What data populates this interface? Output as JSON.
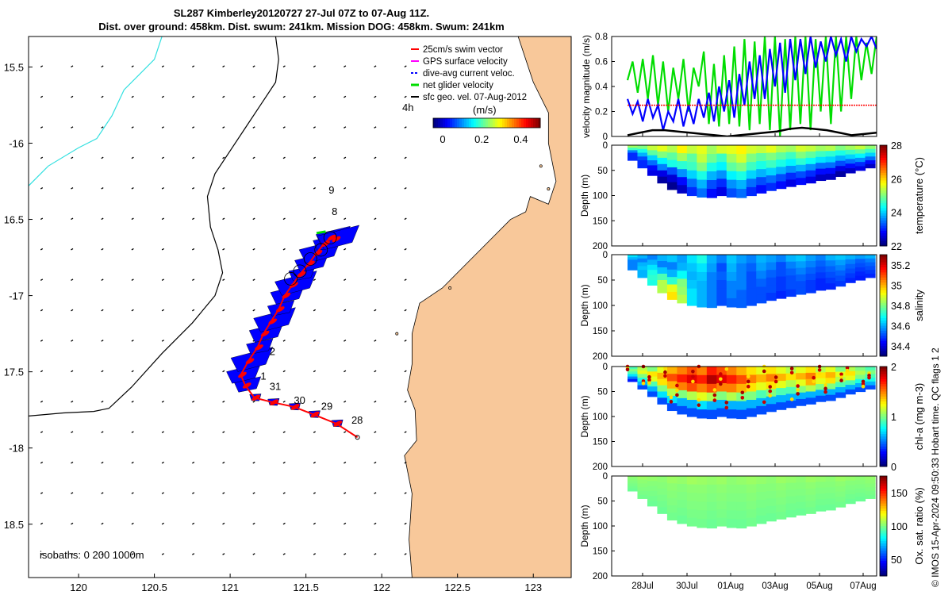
{
  "title_line1": "SL287 Kimberley20120727 27-Jul 07Z to 07-Aug 11Z.",
  "title_line2": "Dist. over ground: 458km. Dist. swum: 241km. Mission DOG: 458km. Swum: 241km",
  "credit": "© IMOS 15-Apr-2024 09:50:33 Hobart time. QC flags 1  2",
  "colors": {
    "land": "#f8c89a",
    "track": "#ff0000",
    "dive_vel": "#0000ff",
    "net_vel": "#00dd00",
    "isobath_200": "#000000",
    "isobath_1000": "#33e0e0"
  },
  "chart_data": [
    {
      "type": "map",
      "lon_ticks": [
        120,
        120.5,
        121,
        121.5,
        122,
        122.5,
        123
      ],
      "lon_tick_labels": [
        "120",
        "120.5",
        "121",
        "121.5",
        "122",
        "122.5",
        "123"
      ],
      "lat_ticks": [
        -15.5,
        -16,
        -16.5,
        -17,
        -17.5,
        -18,
        -18.5
      ],
      "lat_tick_labels": [
        "15.5",
        "-16",
        "16.5",
        "-17",
        "17.5",
        "-18",
        "18.5"
      ],
      "xlim": [
        119.67,
        123.25
      ],
      "ylim": [
        -18.85,
        -15.3
      ],
      "legend": [
        "25cm/s swim vector",
        "GPS surface velocity",
        "dive-avg current veloc.",
        "net glider velocity",
        "sfc geo. vel. 07-Aug-2012"
      ],
      "legend_location": "top-right",
      "colorbar_label": "(m/s)",
      "colorbar_ticks": [
        "0",
        "0.2",
        "0.4"
      ],
      "colorbar_range": [
        0,
        0.5
      ],
      "time_marker": "4h",
      "isobath_label": "isobaths: 0   200  1000m",
      "track_lon": [
        121.84,
        121.7,
        121.55,
        121.42,
        121.28,
        121.16,
        121.1,
        121.07,
        121.12,
        121.18,
        121.22,
        121.27,
        121.32,
        121.36,
        121.41,
        121.46,
        121.52,
        121.57,
        121.62,
        121.66,
        121.69
      ],
      "track_lat": [
        -17.93,
        -17.84,
        -17.78,
        -17.73,
        -17.7,
        -17.67,
        -17.59,
        -17.52,
        -17.43,
        -17.34,
        -17.25,
        -17.17,
        -17.09,
        -17.0,
        -16.93,
        -16.86,
        -16.79,
        -16.72,
        -16.66,
        -16.62,
        -16.63
      ],
      "day_labels": [
        {
          "text": "28",
          "lon": 121.8,
          "lat": -17.84
        },
        {
          "text": "29",
          "lon": 121.6,
          "lat": -17.75
        },
        {
          "text": "30",
          "lon": 121.42,
          "lat": -17.71
        },
        {
          "text": "31",
          "lon": 121.26,
          "lat": -17.62
        },
        {
          "text": "1",
          "lon": 121.2,
          "lat": -17.55
        },
        {
          "text": "2",
          "lon": 121.26,
          "lat": -17.39
        },
        {
          "text": "8",
          "lon": 121.67,
          "lat": -16.47
        },
        {
          "text": "9",
          "lon": 121.65,
          "lat": -16.33
        }
      ]
    },
    {
      "type": "line",
      "ylabel": "velocity magnitude (m/s)",
      "ylim": [
        0,
        0.8
      ],
      "yticks": [
        "0",
        "0.2",
        "0.4",
        "0.6",
        "0.8"
      ],
      "xticks": [
        "28Jul",
        "30Jul",
        "01Aug",
        "03Aug",
        "05Aug",
        "07Aug"
      ],
      "series": [
        {
          "name": "net glider velocity",
          "color": "#00dd00",
          "values": [
            0.45,
            0.6,
            0.35,
            0.62,
            0.3,
            0.65,
            0.25,
            0.6,
            0.2,
            0.55,
            0.3,
            0.62,
            0.2,
            0.55,
            0.4,
            0.68,
            0.1,
            0.58,
            0.08,
            0.65,
            0.1,
            0.72,
            0.08,
            0.78,
            0.05,
            0.76,
            0.1,
            0.8,
            0.05,
            0.8,
            0.0,
            0.78,
            0.05,
            0.8,
            0.1,
            0.8,
            0.05,
            0.78,
            0.2,
            0.8,
            0.1,
            0.8,
            0.2,
            0.8,
            0.3,
            0.8,
            0.45,
            0.75,
            0.5,
            0.8
          ]
        },
        {
          "name": "dive-avg current veloc.",
          "color": "#0000ff",
          "values": [
            0.3,
            0.18,
            0.28,
            0.12,
            0.3,
            0.15,
            0.25,
            0.05,
            0.2,
            0.12,
            0.3,
            0.08,
            0.25,
            0.1,
            0.3,
            0.15,
            0.35,
            0.12,
            0.4,
            0.2,
            0.45,
            0.15,
            0.5,
            0.25,
            0.6,
            0.3,
            0.65,
            0.3,
            0.7,
            0.4,
            0.75,
            0.35,
            0.78,
            0.45,
            0.78,
            0.5,
            0.8,
            0.55,
            0.76,
            0.6,
            0.8,
            0.65,
            0.78,
            0.6,
            0.8,
            0.68,
            0.78,
            0.72,
            0.8,
            0.7
          ]
        },
        {
          "name": "25cm/s swim vector",
          "color": "#ff0000",
          "values": [
            0.25,
            0.25
          ]
        },
        {
          "name": "sfc geo. vel.",
          "color": "#000000",
          "values": [
            0.01,
            0.03,
            0.05,
            0.05,
            0.04,
            0.03,
            0.02,
            0.01,
            0.0,
            0.01,
            0.02,
            0.03,
            0.04,
            0.06,
            0.07,
            0.06,
            0.05,
            0.03,
            0.01,
            0.02,
            0.03
          ]
        }
      ]
    },
    {
      "type": "heatmap",
      "ylabel": "Depth (m)",
      "ylim": [
        0,
        200
      ],
      "yticks": [
        "0",
        "50",
        "100",
        "150",
        "200"
      ],
      "xticks": [
        "28Jul",
        "30Jul",
        "01Aug",
        "03Aug",
        "05Aug",
        "07Aug"
      ],
      "colorbar_label": "temperature (°C)",
      "colorbar_ticks": [
        "28",
        "26",
        "24",
        "22"
      ],
      "crange": [
        22,
        28
      ],
      "bottom_depth": [
        30,
        45,
        60,
        75,
        88,
        95,
        100,
        103,
        104,
        100,
        103,
        104,
        100,
        95,
        90,
        86,
        82,
        78,
        75,
        70,
        68,
        62,
        55,
        50,
        45
      ],
      "rows": [
        [
          25.2,
          25.0,
          25.4,
          25.6,
          25.3,
          25.8,
          25.4,
          25.6,
          25.2,
          25.5,
          25.6,
          25.8,
          25.5,
          25.4,
          25.6,
          25.3,
          25.2,
          25.5,
          25.4,
          25.2,
          25.3,
          25.0,
          25.2,
          25.4,
          25.1
        ],
        [
          24.6,
          24.4,
          24.8,
          25.0,
          24.8,
          25.2,
          24.8,
          25.4,
          24.9,
          24.6,
          25.2,
          25.5,
          25.0,
          24.8,
          25.0,
          24.8,
          24.6,
          25.0,
          24.8,
          24.6,
          24.5,
          24.4,
          24.6,
          24.8,
          24.6
        ],
        [
          23.5,
          23.8,
          24.0,
          24.2,
          24.4,
          24.5,
          24.6,
          25.0,
          24.4,
          24.2,
          24.8,
          25.0,
          24.6,
          24.4,
          24.6,
          24.4,
          24.2,
          24.5,
          24.3,
          24.1,
          24.0,
          23.8,
          24.0,
          24.2,
          24.0
        ],
        [
          23.0,
          23.2,
          23.4,
          23.5,
          23.2,
          23.6,
          24.0,
          24.4,
          23.8,
          23.6,
          24.2,
          24.4,
          24.0,
          23.8,
          24.0,
          23.8,
          23.6,
          23.8,
          23.6,
          23.4,
          23.4,
          23.2,
          23.4,
          23.6,
          23.4
        ],
        [
          23.0,
          23.0,
          22.8,
          22.6,
          22.5,
          22.8,
          23.4,
          23.8,
          23.2,
          23.0,
          23.6,
          23.8,
          23.4,
          23.2,
          23.4,
          23.2,
          23.0,
          23.2,
          23.0,
          22.8,
          22.8,
          22.6,
          22.8,
          23.0,
          22.8
        ],
        [
          23.0,
          23.0,
          22.6,
          22.2,
          22.1,
          22.4,
          23.0,
          23.4,
          22.8,
          22.6,
          23.2,
          23.4,
          23.0,
          22.8,
          23.0,
          22.8,
          22.6,
          22.8,
          22.6,
          22.4,
          22.4,
          22.2,
          22.4,
          22.6,
          22.4
        ]
      ]
    },
    {
      "type": "heatmap",
      "ylabel": "Depth (m)",
      "ylim": [
        0,
        200
      ],
      "yticks": [
        "0",
        "50",
        "100",
        "150",
        "200"
      ],
      "xticks": [
        "28Jul",
        "30Jul",
        "01Aug",
        "03Aug",
        "05Aug",
        "07Aug"
      ],
      "colorbar_label": "salinity",
      "colorbar_ticks": [
        "35.2",
        "35",
        "34.8",
        "34.6",
        "34.4"
      ],
      "crange": [
        34.3,
        35.3
      ],
      "bottom_depth": [
        30,
        45,
        60,
        75,
        88,
        95,
        100,
        103,
        104,
        100,
        103,
        104,
        100,
        95,
        90,
        86,
        82,
        78,
        75,
        70,
        68,
        62,
        55,
        50,
        45
      ],
      "rows": [
        [
          34.65,
          34.6,
          34.55,
          34.6,
          34.62,
          34.58,
          34.65,
          34.7,
          34.6,
          34.55,
          34.62,
          34.58,
          34.55,
          34.6,
          34.58,
          34.55,
          34.6,
          34.62,
          34.58,
          34.55,
          34.6,
          34.62,
          34.6,
          34.58,
          34.6
        ],
        [
          34.6,
          34.55,
          34.6,
          34.55,
          34.55,
          34.6,
          34.62,
          34.65,
          34.58,
          34.5,
          34.6,
          34.55,
          34.52,
          34.58,
          34.55,
          34.5,
          34.55,
          34.58,
          34.55,
          34.52,
          34.55,
          34.58,
          34.55,
          34.52,
          34.55
        ],
        [
          34.55,
          34.6,
          34.65,
          34.62,
          34.6,
          34.68,
          34.6,
          34.62,
          34.55,
          34.52,
          34.58,
          34.55,
          34.5,
          34.55,
          34.52,
          34.5,
          34.52,
          34.55,
          34.52,
          34.5,
          34.52,
          34.55,
          34.52,
          34.5,
          34.52
        ],
        [
          34.55,
          34.62,
          34.7,
          34.75,
          34.72,
          34.8,
          34.62,
          34.6,
          34.55,
          34.5,
          34.55,
          34.55,
          34.5,
          34.52,
          34.5,
          34.48,
          34.5,
          34.52,
          34.5,
          34.48,
          34.5,
          34.52,
          34.5,
          34.48,
          34.5
        ],
        [
          34.55,
          34.6,
          34.72,
          34.85,
          34.9,
          34.82,
          34.65,
          34.6,
          34.55,
          34.5,
          34.55,
          34.52,
          34.5,
          34.5,
          34.5,
          34.48,
          34.5,
          34.5,
          34.48,
          34.46,
          34.48,
          34.5,
          34.48,
          34.46,
          34.48
        ],
        [
          34.55,
          34.6,
          34.7,
          34.85,
          34.95,
          34.85,
          34.65,
          34.6,
          34.55,
          34.5,
          34.52,
          34.52,
          34.5,
          34.5,
          34.48,
          34.46,
          34.48,
          34.5,
          34.48,
          34.46,
          34.46,
          34.48,
          34.46,
          34.45,
          34.46
        ]
      ]
    },
    {
      "type": "heatmap",
      "ylabel": "Depth (m)",
      "ylim": [
        0,
        200
      ],
      "yticks": [
        "0",
        "50",
        "100",
        "150",
        "200"
      ],
      "xticks": [
        "28Jul",
        "30Jul",
        "01Aug",
        "03Aug",
        "05Aug",
        "07Aug"
      ],
      "colorbar_label": "chl-a (mg m-3)",
      "colorbar_ticks": [
        "2",
        "1",
        "0"
      ],
      "crange": [
        0,
        2
      ],
      "bottom_depth": [
        30,
        45,
        60,
        75,
        88,
        95,
        100,
        103,
        104,
        100,
        103,
        104,
        100,
        95,
        90,
        86,
        82,
        78,
        75,
        70,
        68,
        62,
        55,
        50,
        45
      ],
      "rows": [
        [
          0.9,
          1.1,
          1.0,
          1.2,
          1.4,
          1.5,
          1.6,
          1.5,
          1.7,
          1.6,
          1.5,
          1.4,
          1.3,
          1.2,
          1.3,
          1.2,
          1.1,
          1.2,
          1.3,
          1.1,
          1.2,
          1.0,
          1.1,
          1.0,
          0.9
        ],
        [
          1.0,
          1.2,
          1.3,
          1.4,
          1.6,
          1.7,
          1.8,
          1.7,
          1.9,
          1.8,
          1.7,
          1.6,
          1.5,
          1.4,
          1.5,
          1.4,
          1.3,
          1.4,
          1.5,
          1.3,
          1.4,
          1.2,
          1.3,
          1.1,
          1.0
        ],
        [
          0.9,
          1.0,
          1.2,
          1.3,
          1.4,
          1.5,
          1.6,
          1.5,
          1.6,
          1.5,
          1.5,
          1.4,
          1.3,
          1.2,
          1.3,
          1.2,
          1.1,
          1.2,
          1.4,
          1.2,
          1.3,
          1.1,
          1.2,
          1.0,
          0.9
        ],
        [
          0.7,
          0.8,
          0.9,
          1.0,
          1.1,
          1.0,
          1.1,
          1.2,
          1.1,
          1.0,
          1.1,
          1.0,
          1.0,
          0.9,
          1.0,
          0.9,
          0.9,
          1.0,
          1.1,
          1.0,
          1.0,
          0.9,
          0.9,
          0.8,
          0.8
        ],
        [
          0.5,
          0.6,
          0.6,
          0.7,
          0.7,
          0.6,
          0.6,
          0.7,
          0.6,
          0.6,
          0.6,
          0.6,
          0.6,
          0.6,
          0.6,
          0.6,
          0.6,
          0.6,
          0.6,
          0.6,
          0.6,
          0.6,
          0.6,
          0.6,
          0.6
        ],
        [
          0.3,
          0.4,
          0.4,
          0.4,
          0.4,
          0.4,
          0.4,
          0.4,
          0.4,
          0.4,
          0.4,
          0.4,
          0.4,
          0.4,
          0.4,
          0.4,
          0.4,
          0.4,
          0.4,
          0.4,
          0.4,
          0.4,
          0.4,
          0.4,
          0.4
        ]
      ]
    },
    {
      "type": "heatmap",
      "ylabel": "Depth (m)",
      "ylim": [
        0,
        200
      ],
      "yticks": [
        "0",
        "50",
        "100",
        "150",
        "200"
      ],
      "xticks": [
        "28Jul",
        "30Jul",
        "01Aug",
        "03Aug",
        "05Aug",
        "07Aug"
      ],
      "colorbar_label": "Ox. sat. ratio (%)",
      "colorbar_ticks": [
        "150",
        "100",
        "50"
      ],
      "crange": [
        25,
        175
      ],
      "bottom_depth": [
        30,
        45,
        60,
        75,
        88,
        95,
        100,
        103,
        104,
        100,
        103,
        104,
        100,
        95,
        90,
        86,
        82,
        78,
        75,
        70,
        68,
        62,
        55,
        50,
        45
      ],
      "rows": [
        [
          102,
          104,
          103,
          102,
          104,
          103,
          105,
          104,
          103,
          104,
          102,
          103,
          104,
          103,
          102,
          104,
          103,
          102,
          104,
          103,
          102,
          104,
          103,
          102,
          103
        ],
        [
          101,
          102,
          101,
          101,
          102,
          101,
          102,
          102,
          101,
          102,
          101,
          101,
          102,
          101,
          101,
          102,
          101,
          101,
          102,
          101,
          101,
          102,
          101,
          101,
          102
        ],
        [
          100,
          101,
          100,
          100,
          101,
          100,
          101,
          101,
          100,
          101,
          100,
          100,
          101,
          100,
          100,
          101,
          100,
          100,
          101,
          100,
          100,
          101,
          100,
          100,
          101
        ],
        [
          99,
          100,
          99,
          99,
          100,
          99,
          100,
          100,
          99,
          100,
          99,
          99,
          100,
          99,
          99,
          100,
          99,
          99,
          100,
          99,
          99,
          100,
          99,
          99,
          100
        ],
        [
          98,
          99,
          98,
          98,
          99,
          98,
          99,
          99,
          98,
          99,
          98,
          98,
          99,
          98,
          98,
          99,
          98,
          98,
          99,
          98,
          98,
          99,
          98,
          98,
          99
        ],
        [
          97,
          98,
          97,
          97,
          98,
          97,
          98,
          98,
          97,
          98,
          97,
          97,
          98,
          97,
          97,
          98,
          97,
          97,
          98,
          97,
          97,
          98,
          97,
          97,
          98
        ]
      ]
    }
  ]
}
